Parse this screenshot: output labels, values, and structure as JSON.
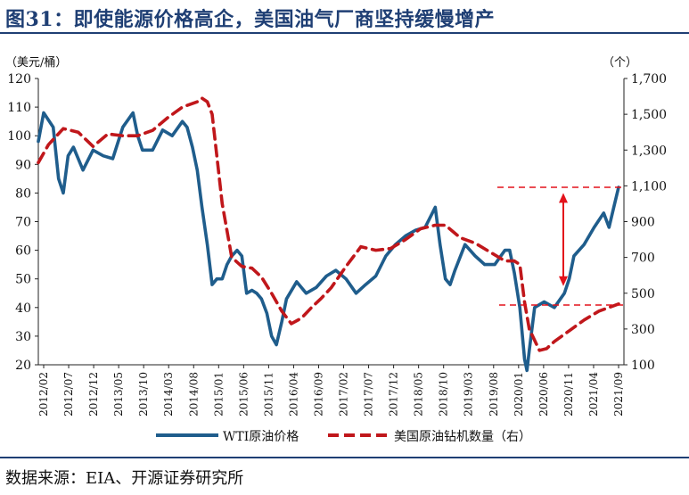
{
  "title": "图31：即使能源价格高企，美国油气厂商坚持缓慢增产",
  "source": "数据来源：EIA、开源证券研究所",
  "chart_data": {
    "type": "line",
    "y_left_label": "（美元/桶）",
    "y_right_label": "（个）",
    "y_left_ticks": [
      "120",
      "110",
      "100",
      "90",
      "80",
      "70",
      "60",
      "50",
      "40",
      "30",
      "20"
    ],
    "y_right_ticks": [
      "1,700",
      "1,500",
      "1,300",
      "1,100",
      "900",
      "700",
      "500",
      "300",
      "100"
    ],
    "ylim_left": [
      20,
      120
    ],
    "ylim_right": [
      100,
      1700
    ],
    "x_ticks": [
      "2012/02",
      "2012/07",
      "2012/12",
      "2013/05",
      "2013/10",
      "2014/03",
      "2014/08",
      "2015/01",
      "2015/06",
      "2015/11",
      "2016/04",
      "2016/09",
      "2017/02",
      "2017/07",
      "2017/12",
      "2018/05",
      "2018/10",
      "2019/03",
      "2019/08",
      "2020/01",
      "2020/06",
      "2020/11",
      "2021/04",
      "2021/09"
    ],
    "series": [
      {
        "name": "WTI原油价格",
        "axis": "left",
        "color": "#1f5d8c",
        "style": "solid",
        "x": [
          2012.08,
          2012.17,
          2012.33,
          2012.42,
          2012.5,
          2012.58,
          2012.67,
          2012.83,
          2013.0,
          2013.17,
          2013.33,
          2013.5,
          2013.67,
          2013.75,
          2013.83,
          2014.0,
          2014.17,
          2014.33,
          2014.5,
          2014.58,
          2014.67,
          2014.75,
          2014.83,
          2014.92,
          2015.0,
          2015.08,
          2015.17,
          2015.25,
          2015.33,
          2015.42,
          2015.5,
          2015.58,
          2015.67,
          2015.75,
          2015.83,
          2015.92,
          2016.0,
          2016.08,
          2016.17,
          2016.25,
          2016.42,
          2016.58,
          2016.75,
          2016.92,
          2017.08,
          2017.25,
          2017.42,
          2017.58,
          2017.75,
          2017.92,
          2018.08,
          2018.25,
          2018.42,
          2018.58,
          2018.75,
          2018.83,
          2018.92,
          2019.0,
          2019.08,
          2019.25,
          2019.42,
          2019.58,
          2019.75,
          2019.92,
          2020.0,
          2020.08,
          2020.17,
          2020.25,
          2020.29,
          2020.33,
          2020.42,
          2020.5,
          2020.58,
          2020.75,
          2020.92,
          2021.0,
          2021.08,
          2021.25,
          2021.42,
          2021.58,
          2021.67,
          2021.75,
          2021.83
        ],
        "values": [
          98,
          108,
          103,
          85,
          80,
          93,
          96,
          88,
          95,
          93,
          92,
          103,
          108,
          100,
          95,
          95,
          102,
          100,
          105,
          103,
          96,
          88,
          75,
          62,
          48,
          50,
          50,
          55,
          58,
          60,
          58,
          45,
          46,
          45,
          43,
          38,
          30,
          27,
          35,
          43,
          49,
          45,
          47,
          51,
          53,
          50,
          45,
          48,
          51,
          58,
          62,
          65,
          67,
          68,
          75,
          62,
          50,
          48,
          53,
          62,
          58,
          55,
          55,
          60,
          60,
          52,
          40,
          22,
          18,
          25,
          40,
          41,
          42,
          40,
          45,
          50,
          58,
          62,
          68,
          73,
          68,
          75,
          82
        ]
      },
      {
        "name": "美国原油钻机数量（右）",
        "axis": "right",
        "color": "#c0171b",
        "style": "dashed",
        "x": [
          2012.08,
          2012.25,
          2012.5,
          2012.75,
          2013.0,
          2013.25,
          2013.5,
          2013.75,
          2014.0,
          2014.25,
          2014.5,
          2014.75,
          2014.83,
          2014.92,
          2015.0,
          2015.17,
          2015.33,
          2015.5,
          2015.67,
          2015.83,
          2016.0,
          2016.17,
          2016.33,
          2016.5,
          2016.67,
          2016.83,
          2017.0,
          2017.25,
          2017.5,
          2017.75,
          2018.0,
          2018.25,
          2018.5,
          2018.75,
          2018.92,
          2019.17,
          2019.42,
          2019.67,
          2019.92,
          2020.08,
          2020.17,
          2020.25,
          2020.33,
          2020.5,
          2020.62,
          2020.75,
          2021.0,
          2021.25,
          2021.5,
          2021.75,
          2021.83
        ],
        "values": [
          1230,
          1330,
          1420,
          1400,
          1320,
          1390,
          1380,
          1380,
          1410,
          1480,
          1540,
          1570,
          1590,
          1570,
          1500,
          1000,
          700,
          650,
          640,
          590,
          500,
          400,
          330,
          360,
          420,
          470,
          530,
          650,
          760,
          740,
          750,
          800,
          860,
          880,
          880,
          810,
          780,
          730,
          680,
          680,
          660,
          450,
          300,
          180,
          190,
          230,
          290,
          350,
          400,
          430,
          440
        ]
      }
    ],
    "annotations": {
      "arrow_from_y_right": 540,
      "arrow_to_y_right": 1060
    },
    "legend_position": "bottom"
  }
}
